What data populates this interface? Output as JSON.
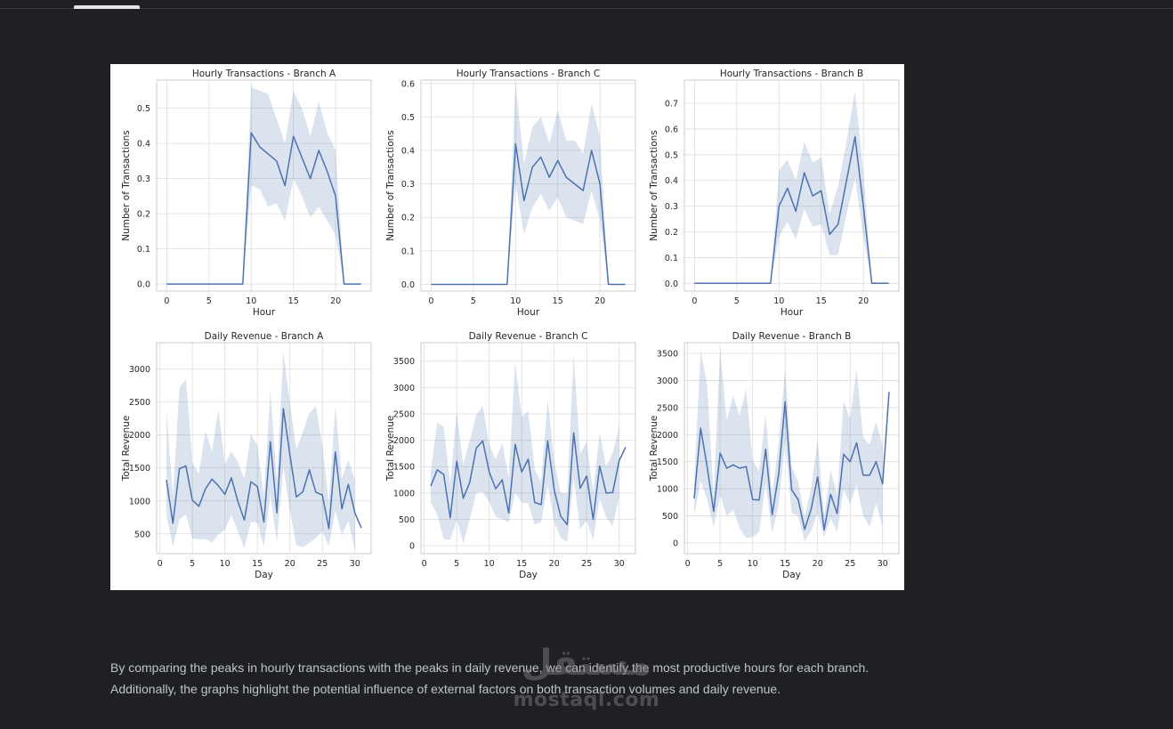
{
  "page": {
    "top_fragment": "",
    "caption_line1": "By comparing the peaks in hourly transactions with the peaks in daily revenue, we can identify the most productive hours for each branch.",
    "caption_line2": "Additionally, the graphs highlight the potential influence of external factors on both transaction volumes and daily revenue.",
    "watermark_arabic": "مستقل",
    "watermark_latin": "mostaql.com"
  },
  "colors": {
    "line": "#4c72b0",
    "band": "#4c72b0",
    "grid": "#dddddd",
    "frame": "#cccccc",
    "text": "#262626"
  },
  "chart_data": [
    {
      "type": "line",
      "title": "Hourly  Transactions - Branch A",
      "xlabel": "Hour",
      "ylabel": "Number of Transactions",
      "xlim": [
        -1.2,
        24.2
      ],
      "ylim": [
        -0.02,
        0.58
      ],
      "xticks": [
        0,
        5,
        10,
        15,
        20
      ],
      "yticks": [
        0.0,
        0.1,
        0.2,
        0.3,
        0.4,
        0.5
      ],
      "ytick_decimals": 1,
      "grid": true,
      "x": [
        0,
        1,
        2,
        3,
        4,
        5,
        6,
        7,
        8,
        9,
        10,
        11,
        12,
        13,
        14,
        15,
        16,
        17,
        18,
        19,
        20,
        21,
        22,
        23
      ],
      "y": [
        0,
        0,
        0,
        0,
        0,
        0,
        0,
        0,
        0,
        0,
        0.43,
        0.39,
        0.37,
        0.35,
        0.28,
        0.42,
        0.36,
        0.3,
        0.38,
        0.32,
        0.25,
        0,
        0,
        0
      ],
      "ci_low": [
        0,
        0,
        0,
        0,
        0,
        0,
        0,
        0,
        0,
        0,
        0.28,
        0.27,
        0.22,
        0.23,
        0.18,
        0.3,
        0.25,
        0.19,
        0.22,
        0.18,
        0.14,
        0,
        0,
        0
      ],
      "ci_high": [
        0,
        0,
        0,
        0,
        0,
        0,
        0,
        0,
        0,
        0,
        0.56,
        0.55,
        0.54,
        0.47,
        0.4,
        0.55,
        0.5,
        0.42,
        0.52,
        0.43,
        0.38,
        0,
        0,
        0
      ]
    },
    {
      "type": "line",
      "title": "Hourly  Transactions - Branch C",
      "xlabel": "Hour",
      "ylabel": "Number of Transactions",
      "xlim": [
        -1.2,
        24.2
      ],
      "ylim": [
        -0.02,
        0.61
      ],
      "xticks": [
        0,
        5,
        10,
        15,
        20
      ],
      "yticks": [
        0.0,
        0.1,
        0.2,
        0.3,
        0.4,
        0.5,
        0.6
      ],
      "ytick_decimals": 1,
      "grid": true,
      "x": [
        0,
        1,
        2,
        3,
        4,
        5,
        6,
        7,
        8,
        9,
        10,
        11,
        12,
        13,
        14,
        15,
        16,
        17,
        18,
        19,
        20,
        21,
        22,
        23
      ],
      "y": [
        0,
        0,
        0,
        0,
        0,
        0,
        0,
        0,
        0,
        0,
        0.42,
        0.25,
        0.35,
        0.38,
        0.32,
        0.37,
        0.32,
        0.3,
        0.28,
        0.4,
        0.3,
        0,
        0,
        0
      ],
      "ci_low": [
        0,
        0,
        0,
        0,
        0,
        0,
        0,
        0,
        0,
        0,
        0.3,
        0.15,
        0.23,
        0.27,
        0.22,
        0.26,
        0.2,
        0.19,
        0.18,
        0.28,
        0.19,
        0,
        0,
        0
      ],
      "ci_high": [
        0,
        0,
        0,
        0,
        0,
        0,
        0,
        0,
        0,
        0,
        0.6,
        0.36,
        0.47,
        0.5,
        0.42,
        0.52,
        0.43,
        0.43,
        0.39,
        0.54,
        0.44,
        0,
        0,
        0
      ]
    },
    {
      "type": "line",
      "title": "Hourly  Transactions - Branch B",
      "xlabel": "Hour",
      "ylabel": "Number of Transactions",
      "xlim": [
        -1.2,
        24.2
      ],
      "ylim": [
        -0.03,
        0.79
      ],
      "xticks": [
        0,
        5,
        10,
        15,
        20
      ],
      "yticks": [
        0.0,
        0.1,
        0.2,
        0.3,
        0.4,
        0.5,
        0.6,
        0.7
      ],
      "ytick_decimals": 1,
      "grid": true,
      "x": [
        0,
        1,
        2,
        3,
        4,
        5,
        6,
        7,
        8,
        9,
        10,
        11,
        12,
        13,
        14,
        15,
        16,
        17,
        18,
        19,
        20,
        21,
        22,
        23
      ],
      "y": [
        0,
        0,
        0,
        0,
        0,
        0,
        0,
        0,
        0,
        0,
        0.3,
        0.37,
        0.28,
        0.43,
        0.34,
        0.36,
        0.19,
        0.23,
        0.4,
        0.57,
        0.3,
        0,
        0,
        0
      ],
      "ci_low": [
        0,
        0,
        0,
        0,
        0,
        0,
        0,
        0,
        0,
        0,
        0.18,
        0.24,
        0.17,
        0.29,
        0.22,
        0.23,
        0.11,
        0.11,
        0.27,
        0.41,
        0.18,
        0,
        0,
        0
      ],
      "ci_high": [
        0,
        0,
        0,
        0,
        0,
        0,
        0,
        0,
        0,
        0,
        0.44,
        0.48,
        0.4,
        0.55,
        0.47,
        0.49,
        0.27,
        0.38,
        0.55,
        0.75,
        0.43,
        0,
        0,
        0
      ]
    },
    {
      "type": "line",
      "title": "Daily Revenue - Branch A",
      "xlabel": "Day",
      "ylabel": "Total Revenue",
      "xlim": [
        -0.5,
        32.5
      ],
      "ylim": [
        200,
        3400
      ],
      "xticks": [
        0,
        5,
        10,
        15,
        20,
        25,
        30
      ],
      "yticks": [
        500,
        1000,
        1500,
        2000,
        2500,
        3000
      ],
      "ytick_decimals": 0,
      "grid": true,
      "x": [
        1,
        2,
        3,
        4,
        5,
        6,
        7,
        8,
        9,
        10,
        11,
        12,
        13,
        14,
        15,
        16,
        17,
        18,
        19,
        20,
        21,
        22,
        23,
        24,
        25,
        26,
        27,
        28,
        29,
        30,
        31
      ],
      "y": [
        1320,
        660,
        1490,
        1530,
        1010,
        920,
        1180,
        1330,
        1230,
        1100,
        1350,
        990,
        710,
        1290,
        1220,
        680,
        1900,
        820,
        2400,
        1700,
        1060,
        1140,
        1470,
        1130,
        1090,
        580,
        1740,
        880,
        1250,
        820,
        590
      ],
      "ci_low": [
        780,
        310,
        720,
        800,
        430,
        420,
        420,
        370,
        490,
        560,
        790,
        530,
        280,
        680,
        670,
        300,
        1090,
        370,
        1520,
        850,
        330,
        300,
        360,
        440,
        540,
        310,
        850,
        480,
        700,
        260,
        null
      ],
      "ci_high": [
        2370,
        1060,
        2720,
        2850,
        1580,
        1410,
        2060,
        1750,
        2380,
        1560,
        1750,
        1590,
        1330,
        2020,
        1830,
        1080,
        2670,
        1290,
        3260,
        2480,
        1780,
        2050,
        2330,
        2440,
        1840,
        970,
        2440,
        1340,
        1620,
        1320,
        null
      ]
    },
    {
      "type": "line",
      "title": "Daily Revenue - Branch C",
      "xlabel": "Day",
      "ylabel": "Total Revenue",
      "xlim": [
        -0.5,
        32.5
      ],
      "ylim": [
        -150,
        3850
      ],
      "xticks": [
        0,
        5,
        10,
        15,
        20,
        25,
        30
      ],
      "yticks": [
        0,
        500,
        1000,
        1500,
        2000,
        2500,
        3000,
        3500
      ],
      "ytick_decimals": 0,
      "grid": true,
      "x": [
        1,
        2,
        3,
        4,
        5,
        6,
        7,
        8,
        9,
        10,
        11,
        12,
        13,
        14,
        15,
        16,
        17,
        18,
        19,
        20,
        21,
        22,
        23,
        24,
        25,
        26,
        27,
        28,
        29,
        30,
        31
      ],
      "y": [
        1130,
        1440,
        1350,
        530,
        1600,
        900,
        1200,
        1850,
        1990,
        1400,
        1080,
        1250,
        620,
        1920,
        1400,
        1640,
        820,
        780,
        1990,
        1060,
        560,
        400,
        2140,
        1090,
        1320,
        500,
        1510,
        1000,
        1010,
        1610,
        1870
      ],
      "ci_low": [
        820,
        590,
        120,
        110,
        500,
        40,
        500,
        1000,
        1020,
        830,
        550,
        500,
        450,
        1000,
        820,
        800,
        400,
        450,
        1160,
        450,
        150,
        70,
        1280,
        320,
        480,
        110,
        900,
        540,
        380,
        920,
        null
      ],
      "ci_high": [
        1420,
        2340,
        2250,
        1160,
        2550,
        1530,
        2000,
        2470,
        2650,
        1920,
        1630,
        1950,
        1280,
        3480,
        2440,
        2550,
        1450,
        1210,
        2780,
        1600,
        1000,
        1000,
        3620,
        1740,
        1980,
        1010,
        2150,
        1500,
        1760,
        2270,
        null
      ]
    },
    {
      "type": "line",
      "title": "Daily Revenue - Branch B",
      "xlabel": "Day",
      "ylabel": "Total Revenue",
      "xlim": [
        -0.5,
        32.5
      ],
      "ylim": [
        -200,
        3700
      ],
      "xticks": [
        0,
        5,
        10,
        15,
        20,
        25,
        30
      ],
      "yticks": [
        0,
        500,
        1000,
        1500,
        2000,
        2500,
        3000,
        3500
      ],
      "ytick_decimals": 0,
      "grid": true,
      "x": [
        1,
        2,
        3,
        4,
        5,
        6,
        7,
        8,
        9,
        10,
        11,
        12,
        13,
        14,
        15,
        16,
        17,
        18,
        19,
        20,
        21,
        22,
        23,
        24,
        25,
        26,
        27,
        28,
        29,
        30,
        31
      ],
      "y": [
        820,
        2120,
        1400,
        580,
        1660,
        1380,
        1440,
        1380,
        1410,
        800,
        790,
        1730,
        520,
        1270,
        2610,
        980,
        800,
        250,
        620,
        1220,
        240,
        900,
        540,
        1640,
        1500,
        1850,
        1250,
        1250,
        1500,
        1090,
        2790
      ],
      "ci_low": [
        500,
        1150,
        800,
        290,
        880,
        500,
        610,
        270,
        90,
        110,
        200,
        1100,
        170,
        700,
        1880,
        550,
        500,
        30,
        220,
        550,
        100,
        460,
        200,
        990,
        710,
        1080,
        500,
        300,
        730,
        300,
        null
      ],
      "ci_high": [
        1130,
        3560,
        2900,
        880,
        3580,
        2260,
        2720,
        2350,
        2850,
        1520,
        1330,
        2370,
        880,
        1840,
        3220,
        1410,
        1130,
        480,
        1010,
        1900,
        500,
        1350,
        890,
        2610,
        2300,
        3220,
        1950,
        1820,
        2240,
        1810,
        null
      ]
    }
  ]
}
